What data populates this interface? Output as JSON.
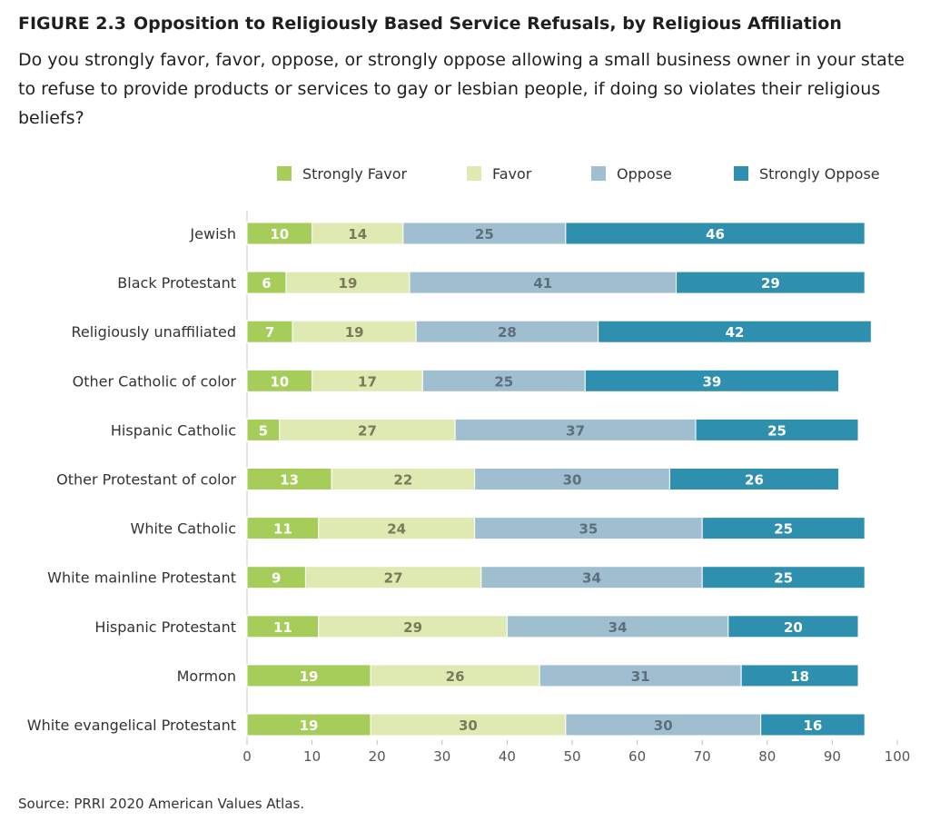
{
  "figure": {
    "number": "FIGURE 2.3",
    "title": "Opposition to Religiously Based Service Refusals, by Religious Affiliation",
    "question": "Do you strongly favor, favor, oppose, or strongly oppose allowing a small business owner in your state to refuse to provide products or services to gay or lesbian people, if doing so violates their religious beliefs?",
    "source": "Source: PRRI 2020 American Values Atlas."
  },
  "chart_data": {
    "type": "bar",
    "orientation": "horizontal",
    "stacked": true,
    "legend_position": "top",
    "grid": false,
    "xlim": [
      0,
      100
    ],
    "xticks": [
      0,
      10,
      20,
      30,
      40,
      50,
      60,
      70,
      80,
      90,
      100
    ],
    "categories": [
      "Jewish",
      "Black Protestant",
      "Religiously unaffiliated",
      "Other Catholic of color",
      "Hispanic Catholic",
      "Other Protestant of color",
      "White Catholic",
      "White mainline Protestant",
      "Hispanic Protestant",
      "Mormon",
      "White evangelical Protestant"
    ],
    "series": [
      {
        "name": "Strongly Favor",
        "color": "#a6cc5a",
        "label_color": "#ffffff",
        "values": [
          10,
          6,
          7,
          10,
          5,
          13,
          11,
          9,
          11,
          19,
          19
        ]
      },
      {
        "name": "Favor",
        "color": "#dfe9b2",
        "label_color": "#7a7a5a",
        "values": [
          14,
          19,
          19,
          17,
          27,
          22,
          24,
          27,
          29,
          26,
          30
        ]
      },
      {
        "name": "Oppose",
        "color": "#9fbfd0",
        "label_color": "#5d6f7c",
        "values": [
          25,
          41,
          28,
          25,
          37,
          30,
          35,
          34,
          34,
          31,
          30
        ]
      },
      {
        "name": "Strongly Oppose",
        "color": "#2f8faf",
        "label_color": "#ffffff",
        "values": [
          46,
          29,
          42,
          39,
          25,
          26,
          25,
          25,
          20,
          18,
          16
        ]
      }
    ]
  }
}
